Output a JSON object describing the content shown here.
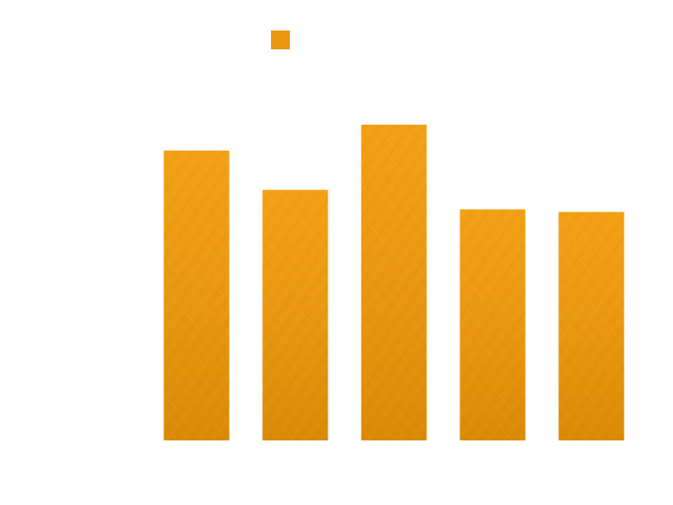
{
  "chart_data": {
    "type": "bar",
    "categories": [
      "",
      "",
      "",
      "",
      ""
    ],
    "series": [
      {
        "values": [
          100,
          86.4,
          108.9,
          79.7,
          78.8
        ],
        "color": "#E8960F"
      }
    ],
    "title": "",
    "xlabel": "",
    "ylabel": "",
    "ylim": [
      0,
      140
    ],
    "grid": false,
    "legend": {
      "position": "top-center",
      "marker": "square"
    },
    "bar_texture": "scratched-metallic"
  },
  "colors": {
    "bar_light": "#F2A013",
    "bar_dark": "#D98A05",
    "background": "#ffffff"
  }
}
